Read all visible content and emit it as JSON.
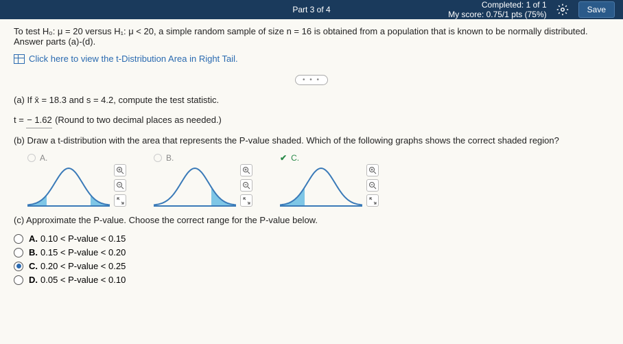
{
  "header": {
    "part": "Part 3 of 4",
    "completed_label": "Completed:",
    "completed_value": "1 of 1",
    "score_label": "My score:",
    "score_value": "0.75/1 pts (75%)",
    "save": "Save"
  },
  "problem": {
    "statement_html": "To test H₀: μ = 20 versus H₁: μ < 20, a simple random sample of size n = 16 is obtained from a population that is known to be normally distributed. Answer parts (a)-(d).",
    "link": "Click here to view the t-Distribution Area in Right Tail."
  },
  "partA": {
    "prompt": "(a) If x̄ = 18.3 and s = 4.2, compute the test statistic.",
    "answer_prefix": "t =",
    "answer_value": "− 1.62",
    "answer_note": "(Round to two decimal places as needed.)"
  },
  "partB": {
    "prompt": "(b) Draw a t-distribution with the area that represents the P-value shaded. Which of the following graphs shows the correct shaded region?",
    "options": [
      {
        "label": "A.",
        "correct": false,
        "shade": "both"
      },
      {
        "label": "B.",
        "correct": false,
        "shade": "right"
      },
      {
        "label": "C.",
        "correct": true,
        "shade": "left"
      }
    ],
    "curve_color": "#3a7ab8",
    "fill_color": "#7ec6e6"
  },
  "partC": {
    "prompt": "(c) Approximate the P-value. Choose the correct range for the P-value below.",
    "selected": "C",
    "options": [
      {
        "letter": "A.",
        "text": "0.10 < P-value < 0.15"
      },
      {
        "letter": "B.",
        "text": "0.15 < P-value < 0.20"
      },
      {
        "letter": "C.",
        "text": "0.20 < P-value < 0.25"
      },
      {
        "letter": "D.",
        "text": "0.05 < P-value < 0.10"
      }
    ]
  },
  "icons": {
    "zoom_in": "�🔍",
    "expand": "⤢"
  }
}
